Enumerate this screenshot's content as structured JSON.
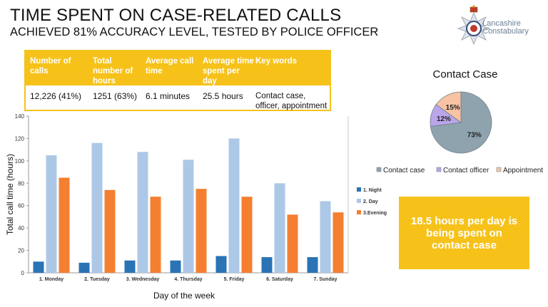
{
  "header": {
    "title": "TIME SPENT ON CASE-RELATED CALLS",
    "subtitle": "ACHIEVED 81% ACCURACY LEVEL, TESTED BY POLICE OFFICER"
  },
  "logo": {
    "line1": "Lancashire",
    "line2": "Constabulary"
  },
  "stats_table": {
    "headers": [
      "Number of calls",
      "Total number of hours",
      "Average call time",
      "Average time spent per day",
      "Key words"
    ],
    "values": [
      "12,226 (41%)",
      "1251 (63%)",
      "6.1 minutes",
      "25.5 hours",
      "Contact case, officer, appointment"
    ]
  },
  "callout": {
    "text": "18.5 hours per day is being spent on contact case"
  },
  "colors": {
    "accent": "#f6c21a",
    "night": "#2a73b5",
    "day": "#adc8e6",
    "evening": "#f47f31",
    "pie_case": "#8ea3ae",
    "pie_officer": "#b9a6ea",
    "pie_appointment": "#f7c3a3"
  },
  "chart_data": [
    {
      "type": "bar",
      "xlabel": "Day of the week",
      "ylabel": "Total call time (hours)",
      "ylim": [
        0,
        140
      ],
      "yticks": [
        0,
        20,
        40,
        60,
        80,
        100,
        120,
        140
      ],
      "categories": [
        "1. Monday",
        "2. Tuesday",
        "3. Wednesday",
        "4. Thursday",
        "5. Friday",
        "6. Saturday",
        "7. Sunday"
      ],
      "series": [
        {
          "name": "1. Night",
          "values": [
            10,
            9,
            11,
            11,
            15,
            14,
            14
          ]
        },
        {
          "name": "2. Day",
          "values": [
            105,
            116,
            108,
            101,
            120,
            80,
            64
          ]
        },
        {
          "name": "3.Evening",
          "values": [
            85,
            74,
            68,
            75,
            68,
            52,
            54
          ]
        }
      ],
      "legend": "right"
    },
    {
      "type": "pie",
      "title": "Contact Case",
      "slices": [
        {
          "name": "Contact case",
          "value": 73,
          "label": "73%"
        },
        {
          "name": "Contact officer",
          "value": 12,
          "label": "12%"
        },
        {
          "name": "Appointment",
          "value": 15,
          "label": "15%"
        }
      ],
      "legend": "bottom"
    }
  ]
}
